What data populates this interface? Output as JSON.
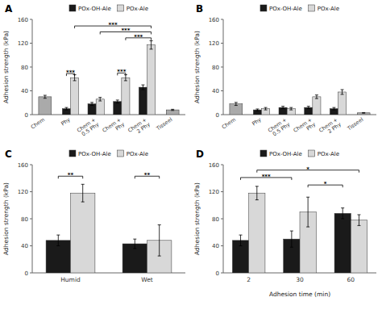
{
  "chart_data": [
    {
      "type": "bar",
      "title": "A",
      "categories": [
        "Chem",
        "Phy",
        "Chem +\n0.5 Phy",
        "Chem +\nPhy",
        "Chem +\n2 Phy",
        "Tisseel"
      ],
      "series": [
        {
          "name": "POx-OH-Ale",
          "color": "#1a1a1a",
          "values": [
            null,
            10,
            18,
            22,
            46,
            null
          ],
          "errors": [
            null,
            2,
            2.5,
            2.5,
            4,
            null
          ]
        },
        {
          "name": "POx-Ale",
          "color": "#d8d8d8",
          "values": [
            null,
            62,
            26,
            62,
            117,
            null
          ],
          "errors": [
            null,
            5,
            3,
            5,
            7,
            null
          ]
        },
        {
          "color": "#aaaaaa",
          "values": [
            30,
            null,
            null,
            null,
            null,
            8
          ],
          "errors": [
            2.5,
            null,
            null,
            null,
            null,
            1
          ]
        }
      ],
      "y_label": "Adhesion strength (kPa)",
      "ylim": [
        0,
        160
      ],
      "yticks": [
        0,
        40,
        80,
        120,
        160
      ],
      "legend": "top",
      "grid": false,
      "annotations": [
        {
          "text": "***",
          "y": 69,
          "from": {
            "category": 1,
            "series": 0
          },
          "to": {
            "category": 1,
            "series": 1
          }
        },
        {
          "text": "***",
          "y": 70,
          "from": {
            "category": 3,
            "series": 0
          },
          "to": {
            "category": 3,
            "series": 1
          }
        },
        {
          "text": "***",
          "y": 149,
          "from": {
            "category": 1,
            "series": 1
          },
          "to": {
            "category": 4,
            "series": 1
          }
        },
        {
          "text": "***",
          "y": 139,
          "from": {
            "category": 2,
            "series": 1
          },
          "to": {
            "category": 4,
            "series": 1
          }
        },
        {
          "text": "***",
          "y": 129,
          "from": {
            "category": 3,
            "series": 1
          },
          "to": {
            "category": 4,
            "series": 1
          }
        }
      ]
    },
    {
      "type": "bar",
      "title": "B",
      "categories": [
        "Chem",
        "Phy",
        "Chem +\n0.5 Phy",
        "Chem +\nPhy",
        "Chem +\n2 Phy",
        "Tisseel"
      ],
      "series": [
        {
          "name": "POx-OH-Ale",
          "color": "#1a1a1a",
          "values": [
            null,
            8,
            12,
            12,
            10,
            null
          ],
          "errors": [
            null,
            1.5,
            2,
            2,
            2,
            null
          ]
        },
        {
          "name": "POx-Ale",
          "color": "#d8d8d8",
          "values": [
            null,
            10,
            10,
            30,
            38,
            null
          ],
          "errors": [
            null,
            2,
            2,
            3,
            4,
            null
          ]
        },
        {
          "color": "#aaaaaa",
          "values": [
            18,
            null,
            null,
            null,
            null,
            3
          ],
          "errors": [
            2.5,
            null,
            null,
            null,
            null,
            0.5
          ]
        }
      ],
      "y_label": "Adhesion strength (kPa)",
      "ylim": [
        0,
        160
      ],
      "yticks": [
        0,
        40,
        80,
        120,
        160
      ],
      "legend": "top",
      "grid": false
    },
    {
      "type": "bar",
      "title": "C",
      "categories": [
        "Humid",
        "Wet"
      ],
      "series": [
        {
          "name": "POx-OH-Ale",
          "color": "#1a1a1a",
          "values": [
            48,
            43
          ],
          "errors": [
            8,
            7
          ]
        },
        {
          "name": "POx-Ale",
          "color": "#d8d8d8",
          "values": [
            118,
            48
          ],
          "errors": [
            13,
            23
          ]
        }
      ],
      "y_label": "Adhesion strength (kPa)",
      "ylim": [
        0,
        160
      ],
      "yticks": [
        0,
        40,
        80,
        120,
        160
      ],
      "legend": "top",
      "grid": false,
      "annotations": [
        {
          "text": "**",
          "y": 143,
          "from": {
            "category": 0,
            "series": 0
          },
          "to": {
            "category": 0,
            "series": 1
          }
        },
        {
          "text": "**",
          "y": 143,
          "from": {
            "category": 1,
            "series": 0
          },
          "to": {
            "category": 1,
            "series": 1
          }
        }
      ]
    },
    {
      "type": "bar",
      "title": "D",
      "categories": [
        "2",
        "30",
        "60"
      ],
      "series": [
        {
          "name": "POx-OH-Ale",
          "color": "#1a1a1a",
          "values": [
            48,
            50,
            88
          ],
          "errors": [
            8,
            12,
            8
          ]
        },
        {
          "name": "POx-Ale",
          "color": "#d8d8d8",
          "values": [
            118,
            90,
            78
          ],
          "errors": [
            10,
            22,
            8
          ]
        }
      ],
      "x_label": "Adhesion time (min)",
      "y_label": "Adhesion strength (kPa)",
      "ylim": [
        0,
        160
      ],
      "yticks": [
        0,
        40,
        80,
        120,
        160
      ],
      "legend": "top",
      "grid": false,
      "annotations": [
        {
          "text": "***",
          "y": 141,
          "from": {
            "category": 0,
            "series": 0
          },
          "to": {
            "category": 1,
            "series": 0
          }
        },
        {
          "text": "*",
          "y": 130,
          "from": {
            "category": 1,
            "series": 1
          },
          "to": {
            "category": 2,
            "series": 0
          }
        },
        {
          "text": "*",
          "y": 152,
          "from": {
            "category": 0,
            "series": 1
          },
          "to": {
            "category": 2,
            "series": 1
          }
        }
      ]
    }
  ]
}
